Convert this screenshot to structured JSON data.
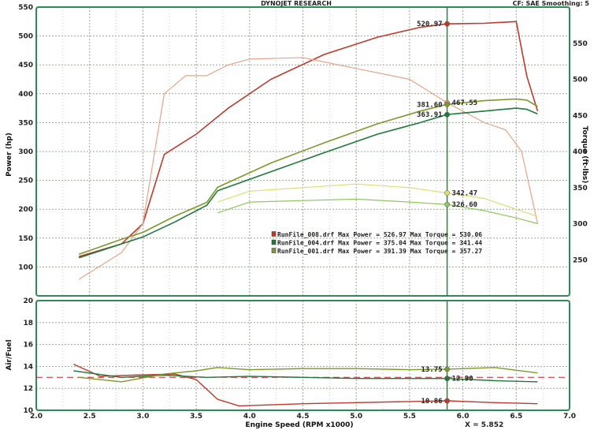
{
  "header": {
    "title": "DYNOJET RESEARCH",
    "correction": "CF: SAE  Smoothing: 5"
  },
  "colors": {
    "frame": "#2e8b57",
    "grid": "#9aa59a",
    "run_008": "#c0392b",
    "run_008_light": "#e8a38a",
    "run_004": "#1e7a3a",
    "run_004_light": "#8cc85a",
    "run_001": "#7a9a2a",
    "run_001_light": "#d8e070",
    "cursor": "#1f8a2e",
    "reference": "#cc2222"
  },
  "x_axis": {
    "label": "Engine Speed (RPM x1000)",
    "ticks": [
      "2.0",
      "2.5",
      "3.0",
      "3.5",
      "4.0",
      "4.5",
      "5.0",
      "5.5",
      "6.0",
      "6.5",
      "7.0"
    ]
  },
  "cursor_readout": "X = 5.852",
  "chart_data": [
    {
      "type": "line",
      "panel": "power-torque",
      "xlim": [
        2.0,
        7.0
      ],
      "ylim": [
        50,
        550
      ],
      "y2lim": [
        200,
        600
      ],
      "ylabel": "Power (hp)",
      "y2label": "Torque (ft-lbs)",
      "yticks": [
        "550",
        "500",
        "450",
        "400",
        "350",
        "300",
        "250",
        "200",
        "150",
        "100"
      ],
      "y2ticks": [
        "550",
        "500",
        "450",
        "400",
        "350",
        "300",
        "250"
      ],
      "grid": true,
      "cursor_x": 5.852,
      "legend": [
        "RunFile_008.drf Max Power = 526.97   Max Torque = 530.06",
        "RunFile_004.drf Max Power = 375.04   Max Torque = 341.44",
        "RunFile_001.drf Max Power = 391.39   Max Torque = 357.27"
      ],
      "series": [
        {
          "name": "RunFile_008.drf",
          "quantity": "power",
          "axis": "left",
          "color": "#c0392b",
          "x": [
            2.4,
            2.8,
            3.0,
            3.2,
            3.5,
            3.8,
            4.2,
            4.7,
            5.2,
            5.6,
            5.85,
            6.2,
            6.5,
            6.6,
            6.7
          ],
          "y": [
            118,
            140,
            175,
            295,
            330,
            375,
            425,
            468,
            498,
            515,
            521,
            522,
            525,
            430,
            370
          ]
        },
        {
          "name": "RunFile_008.drf",
          "quantity": "torque",
          "axis": "right",
          "color": "#e8a38a",
          "x": [
            2.4,
            2.8,
            3.0,
            3.1,
            3.2,
            3.4,
            3.6,
            3.8,
            4.0,
            4.5,
            5.0,
            5.5,
            5.852,
            6.2,
            6.4,
            6.55,
            6.7
          ],
          "y": [
            223,
            260,
            300,
            390,
            480,
            505,
            505,
            520,
            528,
            530,
            515,
            500,
            467.55,
            440,
            430,
            400,
            300
          ]
        },
        {
          "name": "RunFile_004.drf",
          "quantity": "power",
          "axis": "left",
          "color": "#1e7a3a",
          "x": [
            2.4,
            2.8,
            3.0,
            3.3,
            3.6,
            3.7,
            4.2,
            4.7,
            5.2,
            5.6,
            5.85,
            6.2,
            6.5,
            6.6,
            6.7
          ],
          "y": [
            116,
            140,
            152,
            178,
            207,
            232,
            265,
            298,
            330,
            350,
            363.91,
            370,
            375,
            373,
            365
          ]
        },
        {
          "name": "RunFile_004.drf",
          "quantity": "torque",
          "axis": "right",
          "color": "#8cc85a",
          "x": [
            3.7,
            4.0,
            4.5,
            5.0,
            5.5,
            5.852,
            6.2,
            6.5,
            6.7
          ],
          "y": [
            315,
            330,
            332,
            334,
            330,
            326.6,
            318,
            308,
            300
          ]
        },
        {
          "name": "RunFile_001.drf",
          "quantity": "power",
          "axis": "left",
          "color": "#7a9a2a",
          "x": [
            2.4,
            2.8,
            3.0,
            3.3,
            3.6,
            3.7,
            4.2,
            4.7,
            5.2,
            5.6,
            5.85,
            6.2,
            6.5,
            6.6,
            6.7
          ],
          "y": [
            122,
            148,
            160,
            188,
            212,
            238,
            280,
            315,
            348,
            370,
            381.6,
            388,
            391,
            389,
            378
          ]
        },
        {
          "name": "RunFile_001.drf",
          "quantity": "torque",
          "axis": "right",
          "color": "#d8e070",
          "x": [
            3.7,
            4.0,
            4.5,
            5.0,
            5.5,
            5.852,
            6.2,
            6.5,
            6.7
          ],
          "y": [
            330,
            345,
            350,
            355,
            350,
            342.47,
            335,
            320,
            310
          ]
        }
      ],
      "data_labels": [
        {
          "text": "520.97",
          "x": 5.852,
          "y": 520.97,
          "axis": "left",
          "color": "#c0392b",
          "side": "left"
        },
        {
          "text": "467.55",
          "x": 5.852,
          "y": 467.55,
          "axis": "right",
          "color": "#e8a38a",
          "side": "right"
        },
        {
          "text": "381.60",
          "x": 5.852,
          "y": 381.6,
          "axis": "left",
          "color": "#7a9a2a",
          "side": "left"
        },
        {
          "text": "363.91",
          "x": 5.852,
          "y": 363.91,
          "axis": "left",
          "color": "#1e7a3a",
          "side": "left"
        },
        {
          "text": "342.47",
          "x": 5.852,
          "y": 342.47,
          "axis": "right",
          "color": "#d8e070",
          "side": "right"
        },
        {
          "text": "326.60",
          "x": 5.852,
          "y": 326.6,
          "axis": "right",
          "color": "#8cc85a",
          "side": "right"
        }
      ]
    },
    {
      "type": "line",
      "panel": "air-fuel",
      "xlim": [
        2.0,
        7.0
      ],
      "ylim": [
        10,
        20
      ],
      "ylabel": "Air/Fuel",
      "yticks": [
        "20",
        "18",
        "16",
        "14",
        "12",
        "10"
      ],
      "grid": true,
      "cursor_x": 5.852,
      "reference_y": 13.0,
      "series": [
        {
          "name": "RunFile_008.drf",
          "color": "#c0392b",
          "x": [
            2.35,
            2.6,
            2.9,
            3.3,
            3.5,
            3.7,
            3.9,
            4.5,
            5.0,
            5.5,
            5.852,
            6.3,
            6.7
          ],
          "y": [
            14.2,
            13.1,
            13.2,
            13.3,
            12.8,
            11.0,
            10.4,
            10.6,
            10.7,
            10.8,
            10.86,
            10.7,
            10.6
          ]
        },
        {
          "name": "RunFile_004.drf",
          "color": "#1e7a3a",
          "x": [
            2.35,
            2.8,
            3.2,
            3.6,
            4.0,
            4.5,
            5.0,
            5.5,
            5.852,
            6.3,
            6.7
          ],
          "y": [
            13.6,
            13.0,
            13.2,
            13.0,
            13.1,
            13.0,
            12.9,
            12.9,
            12.9,
            12.7,
            12.6
          ]
        },
        {
          "name": "RunFile_001.drf",
          "color": "#7a9a2a",
          "x": [
            2.4,
            2.8,
            3.2,
            3.5,
            3.7,
            4.0,
            4.5,
            5.0,
            5.5,
            5.852,
            6.3,
            6.7
          ],
          "y": [
            13.0,
            12.6,
            13.3,
            13.6,
            13.9,
            13.7,
            13.8,
            13.8,
            13.7,
            13.75,
            13.9,
            13.4
          ]
        }
      ],
      "data_labels": [
        {
          "text": "13.75",
          "x": 5.852,
          "y": 13.75,
          "color": "#7a9a2a",
          "side": "left"
        },
        {
          "text": "12.90",
          "x": 5.852,
          "y": 12.9,
          "color": "#1e7a3a",
          "side": "right"
        },
        {
          "text": "10.86",
          "x": 5.852,
          "y": 10.86,
          "color": "#c0392b",
          "side": "left"
        }
      ]
    }
  ]
}
